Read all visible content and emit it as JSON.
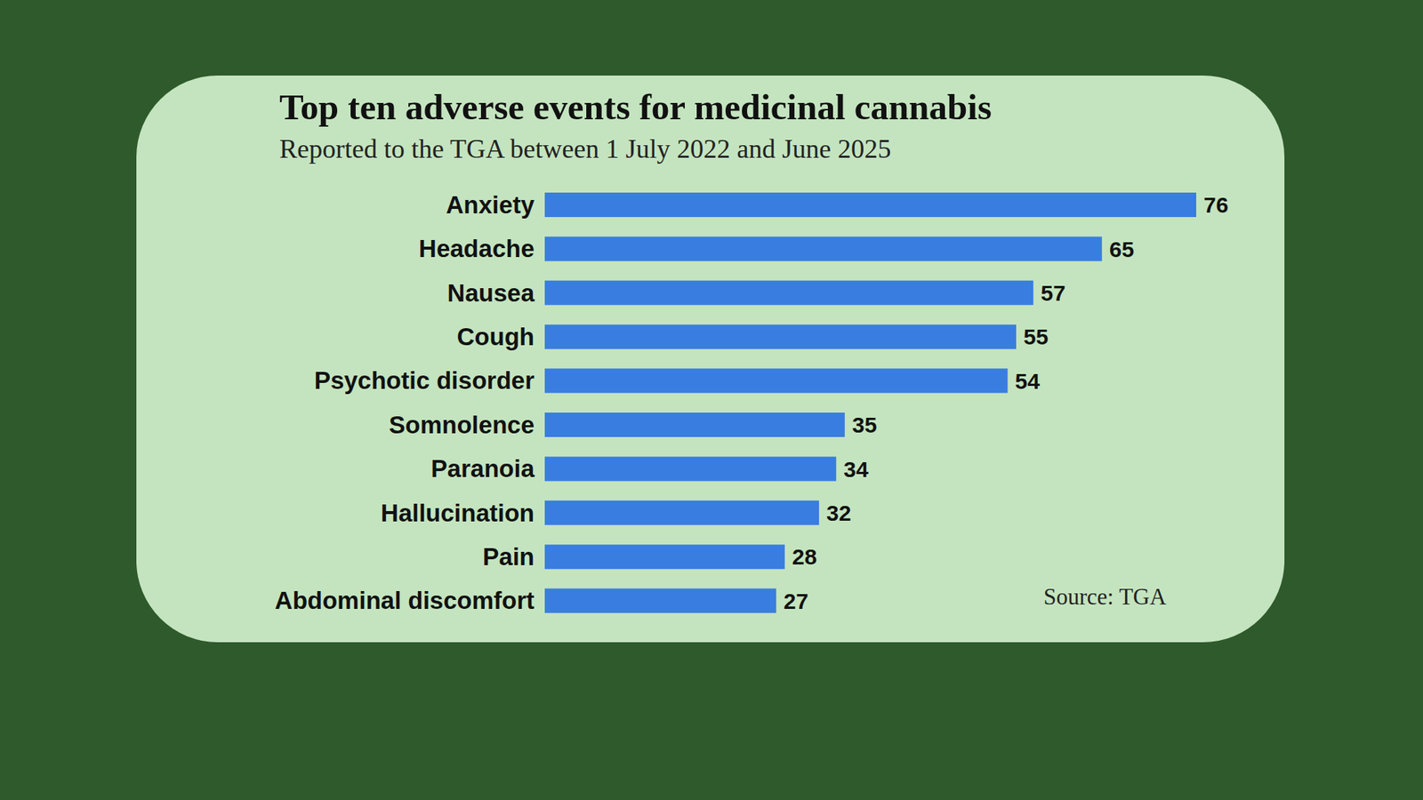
{
  "chart_data": {
    "type": "bar",
    "title": "Top ten adverse events for medicinal cannabis",
    "subtitle": "Reported to the TGA between 1 July 2022 and June 2025",
    "annotations": [
      "Source: TGA"
    ],
    "categories": [
      "Anxiety",
      "Headache",
      "Nausea",
      "Cough",
      "Psychotic disorder",
      "Somnolence",
      "Paranoia",
      "Hallucination",
      "Pain",
      "Abdominal discomfort"
    ],
    "values": [
      76,
      65,
      57,
      55,
      54,
      35,
      34,
      32,
      28,
      27
    ],
    "color": "#3a7de0",
    "xlim": [
      0,
      76
    ],
    "orientation": "horizontal",
    "data_labels": true,
    "tick_labels": "y",
    "grid": false
  }
}
